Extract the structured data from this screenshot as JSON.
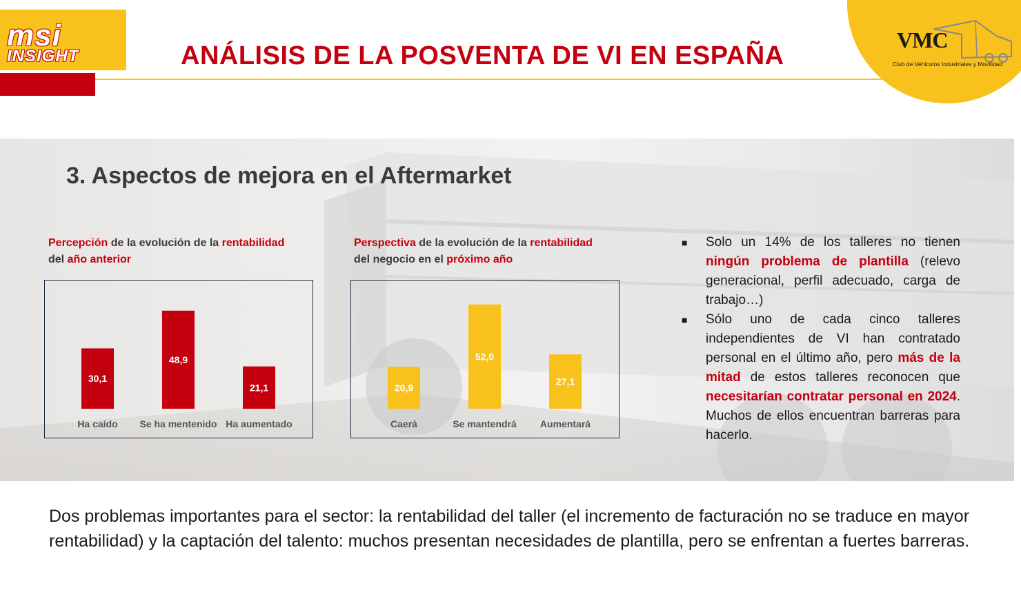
{
  "header": {
    "logo_line1": "msi",
    "logo_line2": "INSIGHT",
    "title": "ANÁLISIS DE LA POSVENTA DE VI EN ESPAÑA",
    "vmc_letters": "VMC",
    "vmc_subtitle": "Club de Vehículos Industriales y Movilidad"
  },
  "section_title": "3. Aspectos de mejora en el Aftermarket",
  "chart1_caption": {
    "p1": "Percepción",
    "p2": " de la evolución de la ",
    "p3": "rentabilidad",
    "p4": " del ",
    "p5": "año anterior"
  },
  "chart2_caption": {
    "p1": "Perspectiva",
    "p2": " de la evolución de la ",
    "p3": "rentabilidad",
    "p4": " del negocio en el ",
    "p5": "próximo año"
  },
  "chart_data": [
    {
      "type": "bar",
      "categories": [
        "Ha caído",
        "Se ha mentenido",
        "Ha aumentado"
      ],
      "values": [
        30.1,
        48.9,
        21.1
      ],
      "value_labels": [
        "30,1",
        "48,9",
        "21,1"
      ],
      "color": "#c4000e",
      "ylim": [
        0,
        55
      ],
      "grid": false
    },
    {
      "type": "bar",
      "categories": [
        "Caerá",
        "Se mantendrá",
        "Aumentará"
      ],
      "values": [
        20.9,
        52.0,
        27.1
      ],
      "value_labels": [
        "20,9",
        "52,0",
        "27,1"
      ],
      "color": "#f8c11c",
      "ylim": [
        0,
        55
      ],
      "grid": false
    }
  ],
  "bullets": [
    {
      "t1": "Solo un 14% de los talleres no tienen ",
      "h1": "ningún problema de plantilla",
      "t2": " (relevo generacional, perfil adecuado, carga de trabajo…)"
    },
    {
      "t1": "Sólo uno de cada cinco talleres independientes de VI han contratado personal en el último año, pero ",
      "h1": "más de la mitad",
      "t2": " de estos talleres reconocen que ",
      "h2": "necesitarían contratar personal en 2024",
      "t3": ". Muchos de ellos encuentran barreras para hacerlo."
    }
  ],
  "footer_text": "Dos problemas importantes para el sector: la rentabilidad del taller (el incremento de facturación no se traduce en mayor rentabilidad) y la captación del talento: muchos presentan necesidades de plantilla, pero se enfrentan a fuertes barreras.",
  "colors": {
    "brand_red": "#c4000e",
    "brand_yellow": "#f8c11c"
  }
}
